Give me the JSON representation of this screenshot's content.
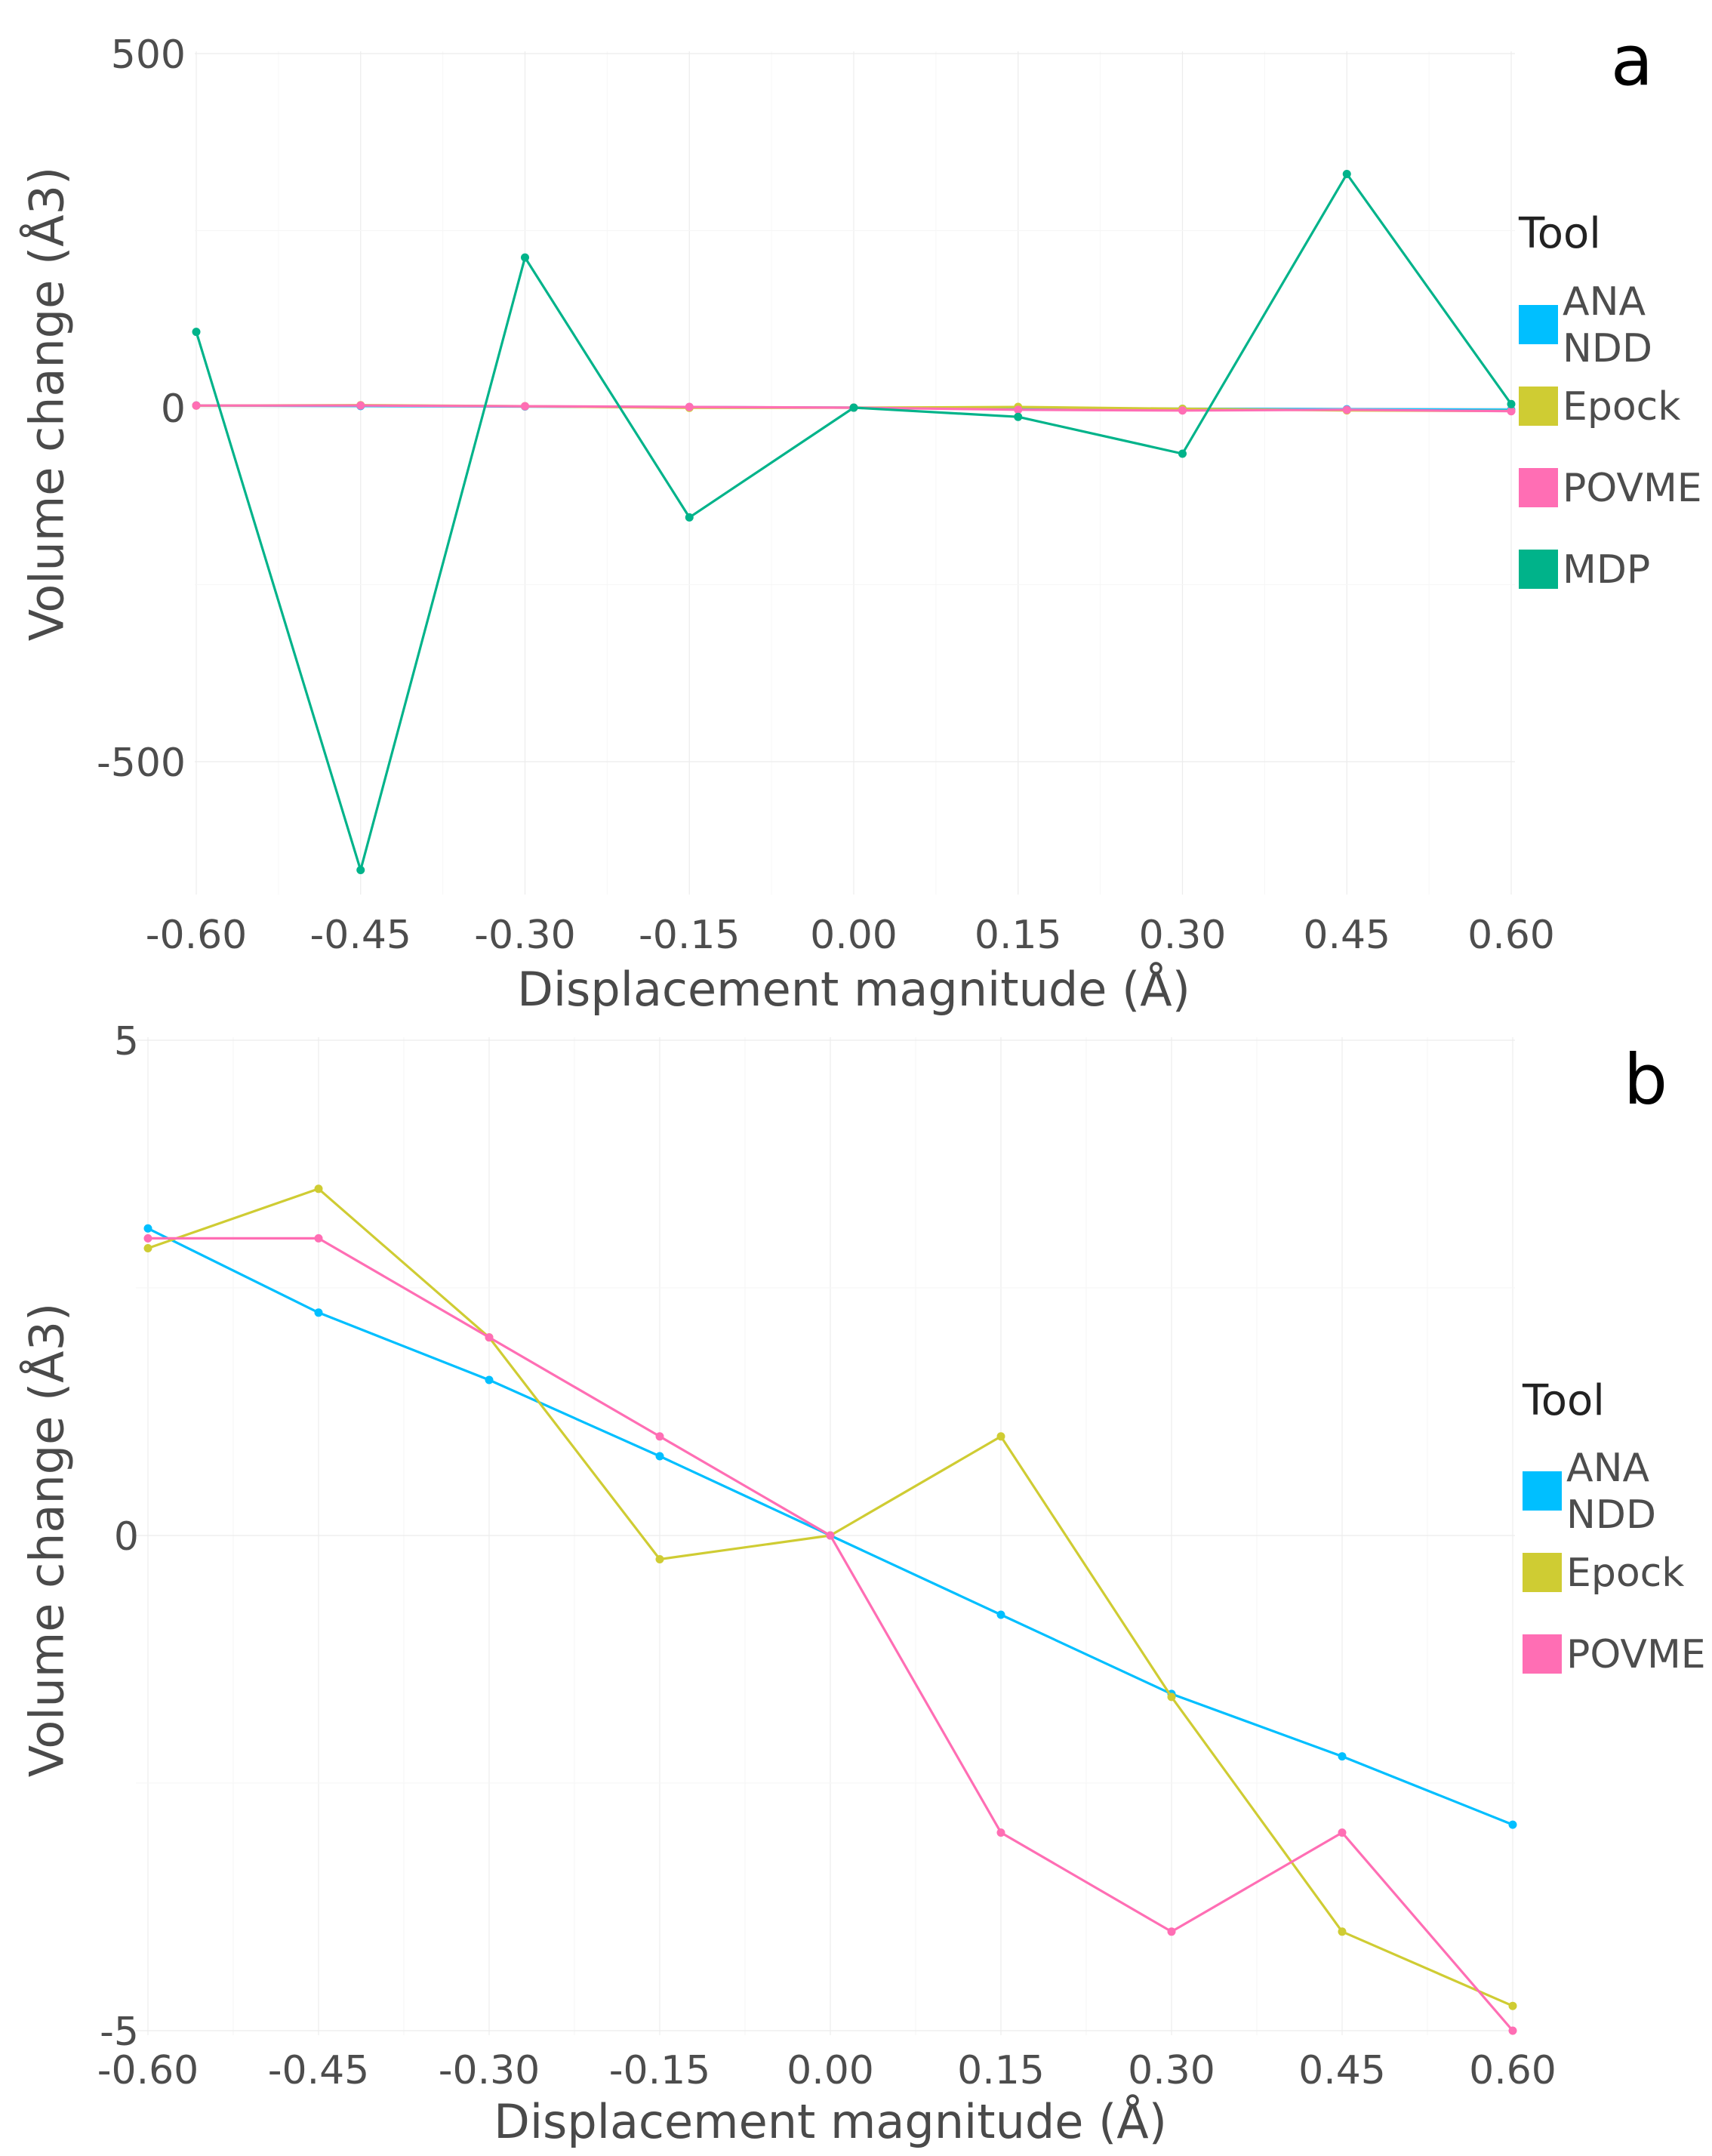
{
  "chart_data": [
    {
      "panel_label": "a",
      "type": "line",
      "xlabel": "Displacement magnitude (Å)",
      "ylabel": "Volume change (Å3)",
      "x": [
        -0.6,
        -0.45,
        -0.3,
        -0.15,
        0.0,
        0.15,
        0.3,
        0.45,
        0.6
      ],
      "x_tick_labels": [
        "-0.60",
        "-0.45",
        "-0.30",
        "-0.15",
        "0.00",
        "0.15",
        "0.30",
        "0.45",
        "0.60"
      ],
      "y_ticks": [
        500,
        0,
        -500
      ],
      "y_tick_labels": [
        "500",
        "0",
        "-500"
      ],
      "xlim": [
        -0.6,
        0.6
      ],
      "ylim": [
        -675,
        500
      ],
      "grid": true,
      "legend_title": "Tool",
      "legend_position": "right",
      "series": [
        {
          "name": "ANA NDD",
          "label_lines": [
            "ANA",
            "NDD"
          ],
          "color": "#00bfff",
          "values": [
            3.1,
            2.3,
            1.6,
            0.8,
            0.0,
            -0.8,
            -1.6,
            -2.3,
            -2.9
          ]
        },
        {
          "name": "Epock",
          "label_lines": [
            "Epock"
          ],
          "color": "#cfcc33",
          "values": [
            2.9,
            3.5,
            2.0,
            -0.2,
            0.0,
            1.0,
            -1.6,
            -3.9,
            -4.7
          ]
        },
        {
          "name": "POVME",
          "label_lines": [
            "POVME"
          ],
          "color": "#ff6eb4",
          "values": [
            3.0,
            3.0,
            2.0,
            1.0,
            0.0,
            -3.0,
            -4.0,
            -3.0,
            -5.0
          ]
        },
        {
          "name": "MDP",
          "label_lines": [
            "MDP"
          ],
          "color": "#00b38a",
          "values": [
            107,
            -653,
            212,
            -155,
            0,
            -13,
            -65,
            330,
            5
          ]
        }
      ]
    },
    {
      "panel_label": "b",
      "type": "line",
      "xlabel": "Displacement magnitude (Å)",
      "ylabel": "Volume change (Å3)",
      "x": [
        -0.6,
        -0.45,
        -0.3,
        -0.15,
        0.0,
        0.15,
        0.3,
        0.45,
        0.6
      ],
      "x_tick_labels": [
        "-0.60",
        "-0.45",
        "-0.30",
        "-0.15",
        "0.00",
        "0.15",
        "0.30",
        "0.45",
        "0.60"
      ],
      "y_ticks": [
        5,
        0,
        -5
      ],
      "y_tick_labels": [
        "5",
        "0",
        "-5"
      ],
      "xlim": [
        -0.6,
        0.6
      ],
      "ylim": [
        -5,
        5
      ],
      "grid": true,
      "legend_title": "Tool",
      "legend_position": "right",
      "series": [
        {
          "name": "ANA NDD",
          "label_lines": [
            "ANA",
            "NDD"
          ],
          "color": "#00bfff",
          "values": [
            3.1,
            2.25,
            1.57,
            0.8,
            0.0,
            -0.8,
            -1.6,
            -2.23,
            -2.92
          ]
        },
        {
          "name": "Epock",
          "label_lines": [
            "Epock"
          ],
          "color": "#cfcc33",
          "values": [
            2.9,
            3.5,
            2.0,
            -0.24,
            0.0,
            1.0,
            -1.63,
            -4.0,
            -4.75
          ]
        },
        {
          "name": "POVME",
          "label_lines": [
            "POVME"
          ],
          "color": "#ff6eb4",
          "values": [
            3.0,
            3.0,
            2.0,
            1.0,
            0.0,
            -3.0,
            -4.0,
            -3.0,
            -5.0
          ]
        }
      ]
    }
  ]
}
